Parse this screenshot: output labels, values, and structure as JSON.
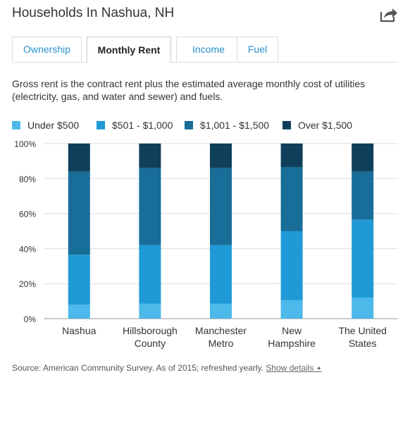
{
  "header": {
    "title": "Households In Nashua, NH",
    "share_icon": "share-icon"
  },
  "tabs": [
    {
      "label": "Ownership",
      "active": false
    },
    {
      "label": "Monthly Rent",
      "active": true
    },
    {
      "label": "Income",
      "active": false
    },
    {
      "label": "Fuel",
      "active": false
    }
  ],
  "description": "Gross rent is the contract rent plus the estimated average monthly cost of utilities (electricity, gas, and water and sewer) and fuels.",
  "chart_data": {
    "type": "bar",
    "stacked": true,
    "categories": [
      [
        "Nashua"
      ],
      [
        "Hillsborough",
        "County"
      ],
      [
        "Manchester",
        "Metro"
      ],
      [
        "New",
        "Hampshire"
      ],
      [
        "The United",
        "States"
      ]
    ],
    "series": [
      {
        "name": "Under $500",
        "color": "#4db8ea",
        "values": [
          8,
          8.5,
          8.5,
          10.5,
          12
        ]
      },
      {
        "name": "$501 - $1,000",
        "color": "#1f9ad6",
        "values": [
          28.5,
          33.5,
          33.5,
          39.5,
          44.5
        ]
      },
      {
        "name": "$1,001 - $1,500",
        "color": "#186d99",
        "values": [
          47.5,
          44,
          44,
          36.5,
          27.5
        ]
      },
      {
        "name": "Over $1,500",
        "color": "#103f5c",
        "values": [
          16,
          14,
          14,
          13.5,
          16
        ]
      }
    ],
    "yticks": [
      "0%",
      "20%",
      "40%",
      "60%",
      "80%",
      "100%"
    ],
    "ylim": [
      0,
      100
    ],
    "grid": true,
    "legend_position": "top"
  },
  "footer": {
    "source_text": "Source: American Community Survey. As of 2015; refreshed yearly.",
    "show_details_label": "Show details",
    "show_details_icon": "caret-up-icon"
  }
}
